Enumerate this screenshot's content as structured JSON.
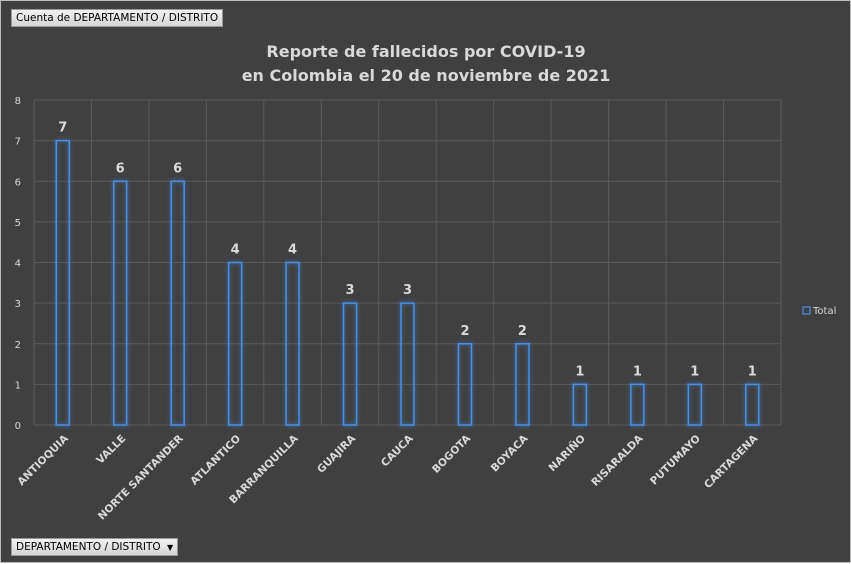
{
  "pivot": {
    "value_field": "Cuenta de DEPARTAMENTO / DISTRITO",
    "axis_field": "DEPARTAMENTO / DISTRITO",
    "dropdown_icon": "triangle-down"
  },
  "colors": {
    "background": "#404040",
    "bar_outline": "#4a8fe0",
    "grid": "#5a5a5a",
    "text": "#d9d9d9"
  },
  "chart_data": {
    "type": "bar",
    "title": "Reporte de fallecidos por COVID-19\nen Colombia el 20 de noviembre de 2021",
    "title_lines": [
      "Reporte de fallecidos por COVID-19",
      "en Colombia el 20 de noviembre de 2021"
    ],
    "categories": [
      "ANTIOQUIA",
      "VALLE",
      "NORTE SANTANDER",
      "ATLANTICO",
      "BARRANQUILLA",
      "GUAJIRA",
      "CAUCA",
      "BOGOTA",
      "BOYACA",
      "NARIÑO",
      "RISARALDA",
      "PUTUMAYO",
      "CARTAGENA"
    ],
    "series": [
      {
        "name": "Total",
        "values": [
          7,
          6,
          6,
          4,
          4,
          3,
          3,
          2,
          2,
          1,
          1,
          1,
          1
        ]
      }
    ],
    "ylim": [
      0,
      8
    ],
    "yticks": [
      0,
      1,
      2,
      3,
      4,
      5,
      6,
      7,
      8
    ],
    "grid": true,
    "data_labels": true,
    "legend": "right"
  }
}
